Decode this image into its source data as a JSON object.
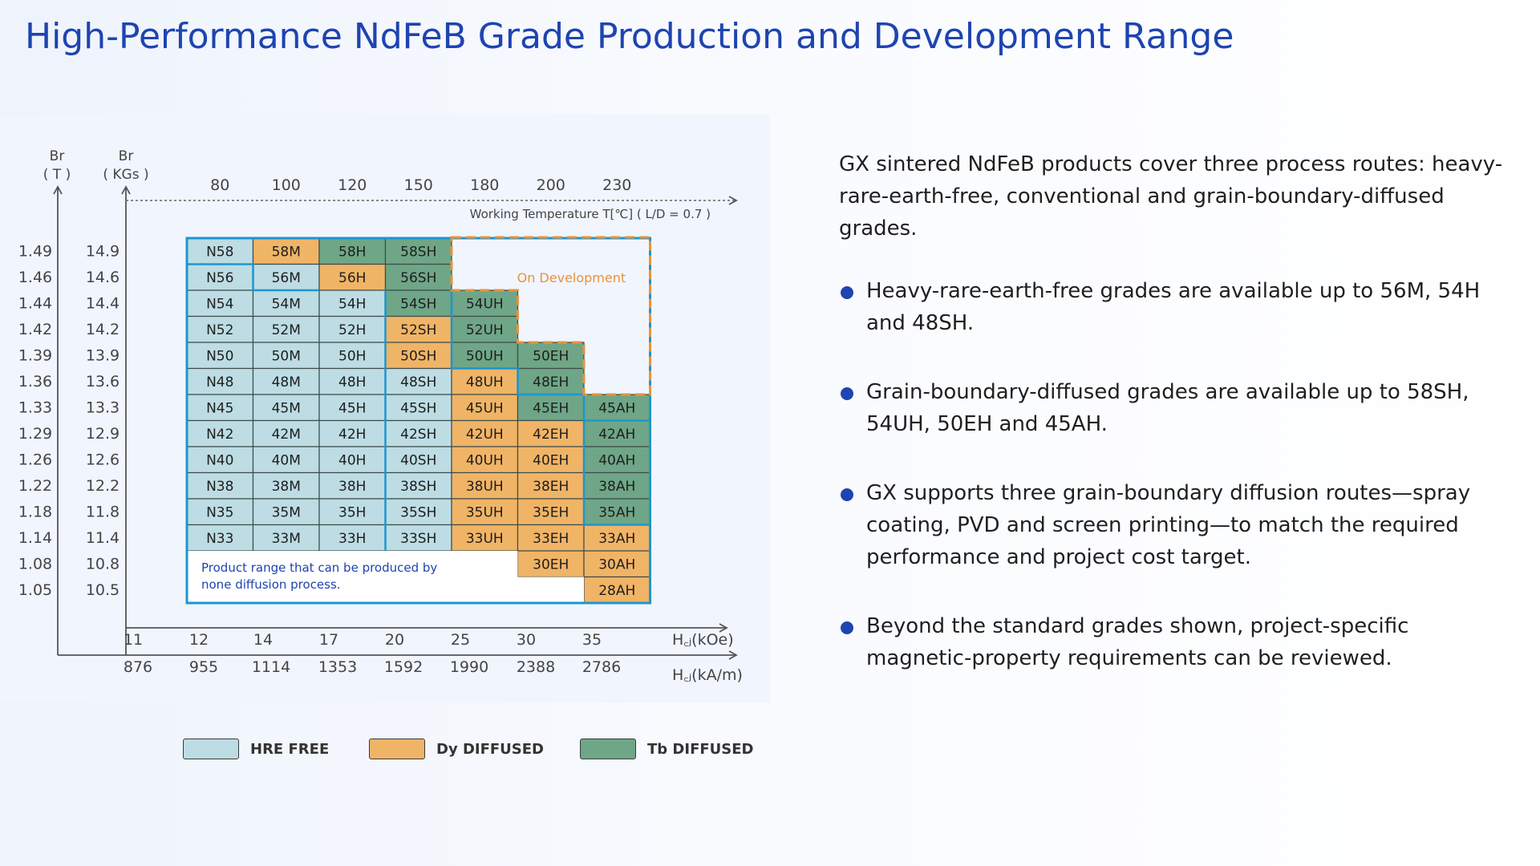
{
  "title": "High-Performance NdFeB Grade Production and Development Range",
  "colors": {
    "title": "#1e44b0",
    "hre_free": "#bddce3",
    "dy_diffused": "#f0b466",
    "tb_diffused": "#6fa687",
    "range_border": "#1c96cf",
    "development_border": "#e8923c",
    "bullet": "#1e44b0"
  },
  "chart_data": {
    "type": "table",
    "left_axis_t_label": [
      "Br",
      "( T )"
    ],
    "left_axis_kgs_label": [
      "Br",
      "( KGs )"
    ],
    "br_t": [
      "1.49",
      "1.46",
      "1.44",
      "1.42",
      "1.39",
      "1.36",
      "1.33",
      "1.29",
      "1.26",
      "1.22",
      "1.18",
      "1.14",
      "1.08",
      "1.05"
    ],
    "br_kgs": [
      "14.9",
      "14.6",
      "14.4",
      "14.2",
      "13.9",
      "13.6",
      "13.3",
      "12.9",
      "12.6",
      "12.2",
      "11.8",
      "11.4",
      "10.8",
      "10.5"
    ],
    "working_temperature_label": "Working Temperature T[℃] ( L/D = 0.7 )",
    "working_temperatures": [
      "80",
      "100",
      "120",
      "150",
      "180",
      "200",
      "230"
    ],
    "hcj_koe_label": "H꜀ⱼ(kOe)",
    "hcj_koe": [
      "11",
      "12",
      "14",
      "17",
      "20",
      "25",
      "30",
      "35"
    ],
    "hcj_kam_label": "H꜀ⱼ(kA/m)",
    "hcj_kam": [
      "876",
      "955",
      "1114",
      "1353",
      "1592",
      "1990",
      "2388",
      "2786"
    ],
    "grade_columns": [
      {
        "grades": [
          {
            "name": "N58",
            "type": "hre"
          },
          {
            "name": "N56",
            "type": "hre"
          },
          {
            "name": "N54",
            "type": "hre"
          },
          {
            "name": "N52",
            "type": "hre"
          },
          {
            "name": "N50",
            "type": "hre"
          },
          {
            "name": "N48",
            "type": "hre"
          },
          {
            "name": "N45",
            "type": "hre"
          },
          {
            "name": "N42",
            "type": "hre"
          },
          {
            "name": "N40",
            "type": "hre"
          },
          {
            "name": "N38",
            "type": "hre"
          },
          {
            "name": "N35",
            "type": "hre"
          },
          {
            "name": "N33",
            "type": "hre"
          }
        ]
      },
      {
        "grades": [
          {
            "name": "58M",
            "type": "dy"
          },
          {
            "name": "56M",
            "type": "hre"
          },
          {
            "name": "54M",
            "type": "hre"
          },
          {
            "name": "52M",
            "type": "hre"
          },
          {
            "name": "50M",
            "type": "hre"
          },
          {
            "name": "48M",
            "type": "hre"
          },
          {
            "name": "45M",
            "type": "hre"
          },
          {
            "name": "42M",
            "type": "hre"
          },
          {
            "name": "40M",
            "type": "hre"
          },
          {
            "name": "38M",
            "type": "hre"
          },
          {
            "name": "35M",
            "type": "hre"
          },
          {
            "name": "33M",
            "type": "hre"
          }
        ]
      },
      {
        "grades": [
          {
            "name": "58H",
            "type": "tb"
          },
          {
            "name": "56H",
            "type": "dy"
          },
          {
            "name": "54H",
            "type": "hre"
          },
          {
            "name": "52H",
            "type": "hre"
          },
          {
            "name": "50H",
            "type": "hre"
          },
          {
            "name": "48H",
            "type": "hre"
          },
          {
            "name": "45H",
            "type": "hre"
          },
          {
            "name": "42H",
            "type": "hre"
          },
          {
            "name": "40H",
            "type": "hre"
          },
          {
            "name": "38H",
            "type": "hre"
          },
          {
            "name": "35H",
            "type": "hre"
          },
          {
            "name": "33H",
            "type": "hre"
          }
        ]
      },
      {
        "grades": [
          {
            "name": "58SH",
            "type": "tb"
          },
          {
            "name": "56SH",
            "type": "tb"
          },
          {
            "name": "54SH",
            "type": "tb"
          },
          {
            "name": "52SH",
            "type": "dy"
          },
          {
            "name": "50SH",
            "type": "dy"
          },
          {
            "name": "48SH",
            "type": "hre"
          },
          {
            "name": "45SH",
            "type": "hre"
          },
          {
            "name": "42SH",
            "type": "hre"
          },
          {
            "name": "40SH",
            "type": "hre"
          },
          {
            "name": "38SH",
            "type": "hre"
          },
          {
            "name": "35SH",
            "type": "hre"
          },
          {
            "name": "33SH",
            "type": "hre"
          }
        ]
      },
      {
        "grades": [
          {
            "name": "54UH",
            "type": "tb"
          },
          {
            "name": "52UH",
            "type": "tb"
          },
          {
            "name": "50UH",
            "type": "tb"
          },
          {
            "name": "48UH",
            "type": "dy"
          },
          {
            "name": "45UH",
            "type": "dy"
          },
          {
            "name": "42UH",
            "type": "dy"
          },
          {
            "name": "40UH",
            "type": "dy"
          },
          {
            "name": "38UH",
            "type": "dy"
          },
          {
            "name": "35UH",
            "type": "dy"
          },
          {
            "name": "33UH",
            "type": "dy"
          }
        ]
      },
      {
        "grades": [
          {
            "name": "50EH",
            "type": "tb"
          },
          {
            "name": "48EH",
            "type": "tb"
          },
          {
            "name": "45EH",
            "type": "tb"
          },
          {
            "name": "42EH",
            "type": "dy"
          },
          {
            "name": "40EH",
            "type": "dy"
          },
          {
            "name": "38EH",
            "type": "dy"
          },
          {
            "name": "35EH",
            "type": "dy"
          },
          {
            "name": "33EH",
            "type": "dy"
          },
          {
            "name": "30EH",
            "type": "dy"
          }
        ]
      },
      {
        "grades": [
          {
            "name": "45AH",
            "type": "tb"
          },
          {
            "name": "42AH",
            "type": "tb"
          },
          {
            "name": "40AH",
            "type": "tb"
          },
          {
            "name": "38AH",
            "type": "tb"
          },
          {
            "name": "35AH",
            "type": "tb"
          },
          {
            "name": "33AH",
            "type": "dy"
          },
          {
            "name": "30AH",
            "type": "dy"
          },
          {
            "name": "28AH",
            "type": "dy"
          }
        ]
      }
    ],
    "development_label": "On Development",
    "range_note": [
      "Product range that can be produced by",
      "none diffusion process."
    ]
  },
  "legend": [
    {
      "label": "HRE FREE",
      "color": "#bddce3"
    },
    {
      "label": "Dy DIFFUSED",
      "color": "#f0b466"
    },
    {
      "label": "Tb DIFFUSED",
      "color": "#6fa687"
    }
  ],
  "intro": "GX sintered NdFeB products cover three process routes: heavy-rare-earth-free, conventional and grain-boundary-diffused grades.",
  "bullets": [
    "Heavy-rare-earth-free grades are available up to 56M, 54H and 48SH.",
    "Grain-boundary-diffused grades are available up to 58SH, 54UH, 50EH and 45AH.",
    "GX supports three grain-boundary diffusion routes—spray coating, PVD and screen printing—to match the required performance and project cost target.",
    "Beyond the standard grades shown, project-specific magnetic-property requirements can be reviewed."
  ]
}
